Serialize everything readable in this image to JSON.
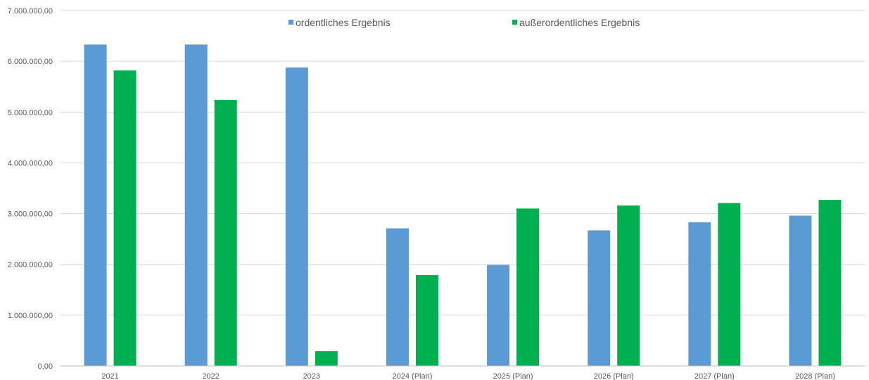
{
  "chart_data": {
    "type": "bar",
    "title": "",
    "xlabel": "",
    "ylabel": "",
    "categories": [
      "2021",
      "2022",
      "2023",
      "2024 (Plan)",
      "2025 (Plan)",
      "2026 (Plan)",
      "2027 (Plan)",
      "2028 (Plan)"
    ],
    "series": [
      {
        "name": "ordentliches Ergebnis",
        "color": "#5b9bd5",
        "values": [
          6330000,
          6330000,
          5880000,
          2710000,
          1990000,
          2670000,
          2830000,
          2960000
        ]
      },
      {
        "name": "außerordentliches Ergebnis",
        "color": "#00b050",
        "values": [
          5820000,
          5240000,
          290000,
          1790000,
          3100000,
          3160000,
          3210000,
          3270000
        ]
      }
    ],
    "ylim": [
      0,
      7000000
    ],
    "yticks": [
      {
        "value": 0,
        "label": "0,00"
      },
      {
        "value": 1000000,
        "label": "1.000.000,00"
      },
      {
        "value": 2000000,
        "label": "2.000.000,00"
      },
      {
        "value": 3000000,
        "label": "3.000.000,00"
      },
      {
        "value": 4000000,
        "label": "4.000.000,00"
      },
      {
        "value": 5000000,
        "label": "5.000.000,00"
      },
      {
        "value": 6000000,
        "label": "6.000.000,00"
      },
      {
        "value": 7000000,
        "label": "7.000.000,00"
      }
    ],
    "grid": true,
    "legend": "top-center",
    "gridline_color": "#d9d9d9",
    "axis_line_color": "#bfbfbf",
    "text_color": "#595959"
  }
}
